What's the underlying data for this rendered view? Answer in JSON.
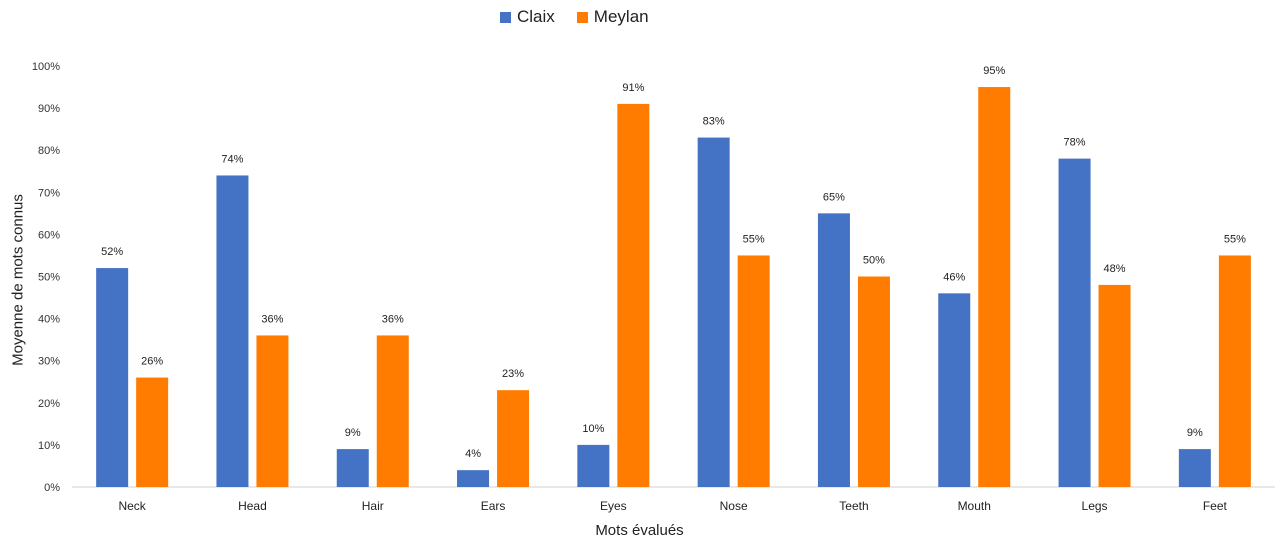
{
  "chart_data": {
    "type": "bar",
    "title": "",
    "xlabel": "Mots évalués",
    "ylabel": "Moyenne de mots connus",
    "categories": [
      "Neck",
      "Head",
      "Hair",
      "Ears",
      "Eyes",
      "Nose",
      "Teeth",
      "Mouth",
      "Legs",
      "Feet"
    ],
    "series": [
      {
        "name": "Claix",
        "color": "#4472c4",
        "values": [
          52,
          74,
          9,
          4,
          10,
          83,
          65,
          46,
          78,
          9
        ]
      },
      {
        "name": "Meylan",
        "color": "#ff7c00",
        "values": [
          26,
          36,
          36,
          23,
          91,
          55,
          50,
          95,
          48,
          55
        ]
      }
    ],
    "ylim": [
      0,
      100
    ],
    "yticks": [
      0,
      10,
      20,
      30,
      40,
      50,
      60,
      70,
      80,
      90,
      100
    ],
    "value_suffix": "%",
    "legend_position": "top-center",
    "grid": false
  }
}
